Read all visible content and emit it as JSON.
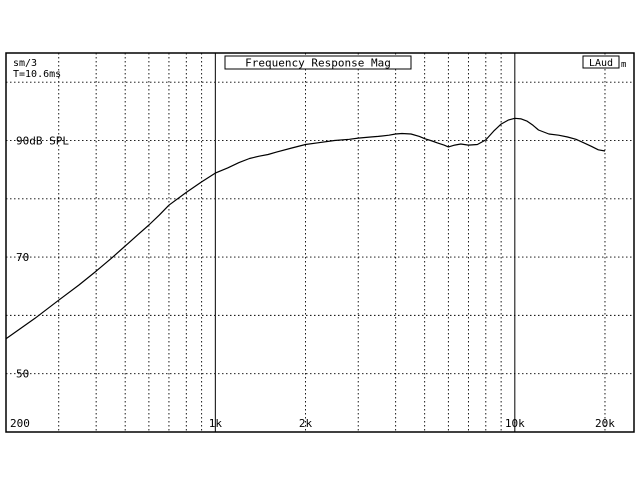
{
  "chart_data": {
    "type": "line",
    "title": "Frequency Response Mag",
    "top_left_lines": [
      "sm/3",
      "T=10.6ms"
    ],
    "top_right_label": "LAud",
    "top_right_suffix": "m",
    "x_scale": "log",
    "xlim": [
      200,
      25000
    ],
    "ylim": [
      40,
      105
    ],
    "grid": true,
    "x_tick_labels": [
      {
        "value": 200,
        "label": "200"
      },
      {
        "value": 1000,
        "label": "1k"
      },
      {
        "value": 2000,
        "label": "2k"
      },
      {
        "value": 10000,
        "label": "10k"
      },
      {
        "value": 20000,
        "label": "20k"
      }
    ],
    "x_grid": [
      300,
      400,
      500,
      600,
      700,
      800,
      900,
      1000,
      2000,
      3000,
      4000,
      5000,
      6000,
      7000,
      8000,
      9000,
      10000,
      20000
    ],
    "x_grid_solid": [
      1000,
      10000
    ],
    "y_grid": [
      50,
      60,
      70,
      80,
      90,
      100
    ],
    "y_tick_labels": [
      {
        "value": 90,
        "label": "90dB SPL"
      },
      {
        "value": 70,
        "label": "70"
      },
      {
        "value": 50,
        "label": "50"
      }
    ],
    "series": [
      {
        "x": [
          200,
          250,
          300,
          350,
          400,
          450,
          500,
          550,
          600,
          650,
          700,
          800,
          900,
          1000,
          1100,
          1200,
          1300,
          1400,
          1500,
          1600,
          1800,
          2000,
          2200,
          2500,
          2800,
          3000,
          3300,
          3500,
          3800,
          4000,
          4200,
          4500,
          4800,
          5000,
          5300,
          5500,
          5800,
          6000,
          6300,
          6600,
          7000,
          7500,
          8000,
          8500,
          9000,
          9500,
          10000,
          10500,
          11000,
          11500,
          12000,
          13000,
          14000,
          15000,
          16000,
          17000,
          18000,
          19000,
          20000
        ],
        "y": [
          56.0,
          59.5,
          62.6,
          65.2,
          67.6,
          69.8,
          71.9,
          73.8,
          75.5,
          77.2,
          78.9,
          81.1,
          82.9,
          84.4,
          85.3,
          86.2,
          86.9,
          87.3,
          87.6,
          88.0,
          88.7,
          89.3,
          89.6,
          90.0,
          90.2,
          90.4,
          90.6,
          90.7,
          90.9,
          91.1,
          91.2,
          91.1,
          90.7,
          90.3,
          89.9,
          89.6,
          89.2,
          88.9,
          89.2,
          89.4,
          89.2,
          89.3,
          90.1,
          91.6,
          92.8,
          93.5,
          93.8,
          93.7,
          93.3,
          92.6,
          91.8,
          91.1,
          90.9,
          90.6,
          90.2,
          89.6,
          89.0,
          88.4,
          88.2
        ]
      }
    ]
  }
}
